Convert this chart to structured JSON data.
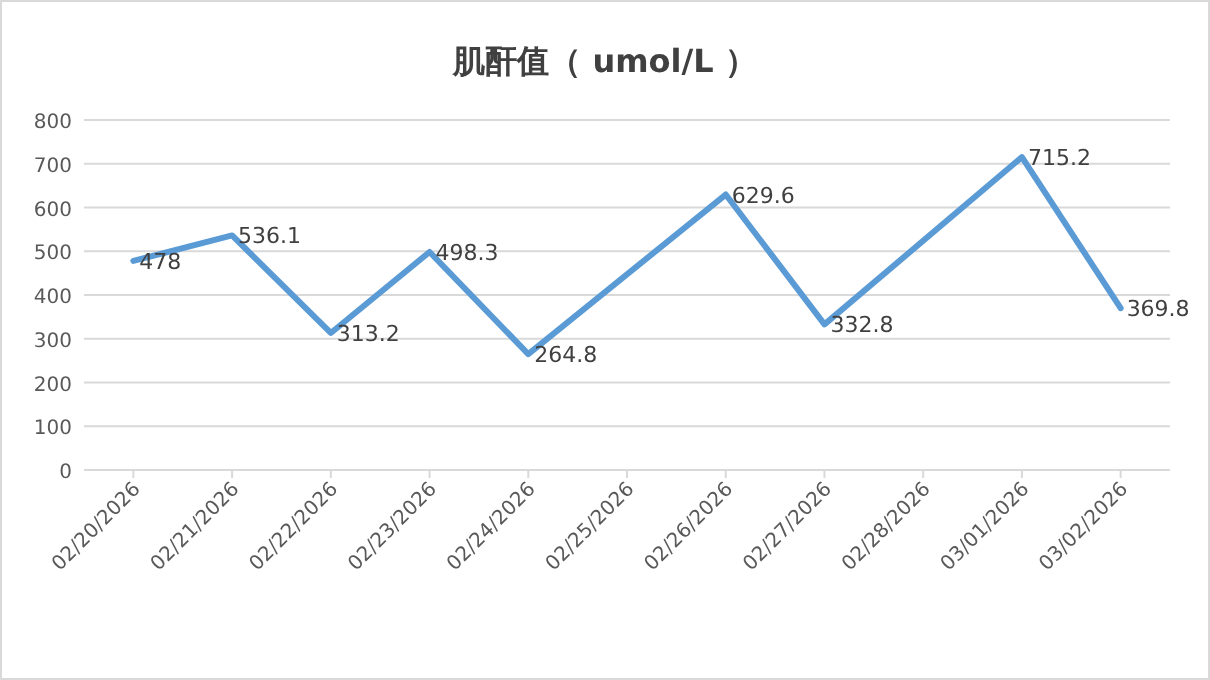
{
  "chart_data": {
    "type": "line",
    "title": "肌酐值（ umol/L ）",
    "x": [
      "2026-02-20",
      "2026-02-21",
      "2026-02-22",
      "2026-02-23",
      "2026-02-24",
      "2026-02-26",
      "2026-02-27",
      "2026-03-01",
      "2026-03-02"
    ],
    "series": [
      {
        "color": "#5b9bd5",
        "values": [
          478,
          536.1,
          313.2,
          498.3,
          264.8,
          629.6,
          332.8,
          715.2,
          369.8
        ]
      }
    ],
    "xlim": [
      "2026-02-19T12:00",
      "2026-03-02T12:00"
    ],
    "xticks": [
      {
        "value": "2026-02-20",
        "label": "02/20/2026"
      },
      {
        "value": "2026-02-21",
        "label": "02/21/2026"
      },
      {
        "value": "2026-02-22",
        "label": "02/22/2026"
      },
      {
        "value": "2026-02-23",
        "label": "02/23/2026"
      },
      {
        "value": "2026-02-24",
        "label": "02/24/2026"
      },
      {
        "value": "2026-02-25",
        "label": "02/25/2026"
      },
      {
        "value": "2026-02-26",
        "label": "02/26/2026"
      },
      {
        "value": "2026-02-27",
        "label": "02/27/2026"
      },
      {
        "value": "2026-02-28",
        "label": "02/28/2026"
      },
      {
        "value": "2026-03-01",
        "label": "03/01/2026"
      },
      {
        "value": "2026-03-02",
        "label": "03/02/2026"
      }
    ],
    "ylim": [
      0,
      800
    ],
    "yticks": [
      0,
      100,
      200,
      300,
      400,
      500,
      600,
      700,
      800
    ],
    "grid": "y",
    "data_labels": true,
    "marker": "none",
    "line_style": "solid"
  }
}
